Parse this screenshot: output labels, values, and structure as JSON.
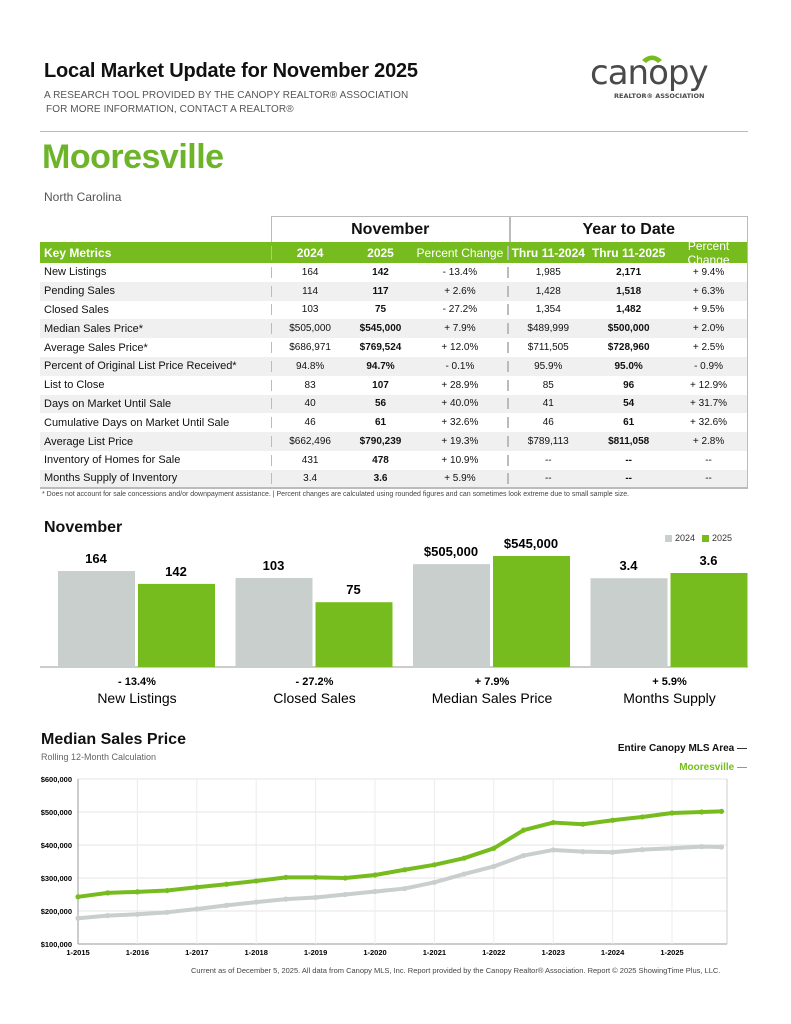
{
  "header": {
    "title": "Local Market Update for November 2025",
    "subtitle1": "A RESEARCH TOOL PROVIDED BY THE CANOPY REALTOR® ASSOCIATION",
    "subtitle2": "FOR MORE INFORMATION, CONTACT A REALTOR®",
    "logo_text": "canopy",
    "logo_sub": "REALTOR® ASSOCIATION"
  },
  "location": {
    "city": "Mooresville",
    "state": "North Carolina"
  },
  "table": {
    "group_headers": [
      "November",
      "Year to Date"
    ],
    "columns": [
      "Key Metrics",
      "2024",
      "2025",
      "Percent Change",
      "Thru 11-2024",
      "Thru 11-2025",
      "Percent Change"
    ],
    "rows": [
      [
        "New Listings",
        "164",
        "142",
        "- 13.4%",
        "1,985",
        "2,171",
        "+ 9.4%"
      ],
      [
        "Pending Sales",
        "114",
        "117",
        "+ 2.6%",
        "1,428",
        "1,518",
        "+ 6.3%"
      ],
      [
        "Closed Sales",
        "103",
        "75",
        "- 27.2%",
        "1,354",
        "1,482",
        "+ 9.5%"
      ],
      [
        "Median Sales Price*",
        "$505,000",
        "$545,000",
        "+ 7.9%",
        "$489,999",
        "$500,000",
        "+ 2.0%"
      ],
      [
        "Average Sales Price*",
        "$686,971",
        "$769,524",
        "+ 12.0%",
        "$711,505",
        "$728,960",
        "+ 2.5%"
      ],
      [
        "Percent of Original List Price Received*",
        "94.8%",
        "94.7%",
        "- 0.1%",
        "95.9%",
        "95.0%",
        "- 0.9%"
      ],
      [
        "List to Close",
        "83",
        "107",
        "+ 28.9%",
        "85",
        "96",
        "+ 12.9%"
      ],
      [
        "Days on Market Until Sale",
        "40",
        "56",
        "+ 40.0%",
        "41",
        "54",
        "+ 31.7%"
      ],
      [
        "Cumulative Days on Market Until Sale",
        "46",
        "61",
        "+ 32.6%",
        "46",
        "61",
        "+ 32.6%"
      ],
      [
        "Average List Price",
        "$662,496",
        "$790,239",
        "+ 19.3%",
        "$789,113",
        "$811,058",
        "+ 2.8%"
      ],
      [
        "Inventory of Homes for Sale",
        "431",
        "478",
        "+ 10.9%",
        "--",
        "--",
        "--"
      ],
      [
        "Months Supply of Inventory",
        "3.4",
        "3.6",
        "+ 5.9%",
        "--",
        "--",
        "--"
      ]
    ],
    "footnote": "* Does not account for sale concessions and/or downpayment assistance.  |  Percent changes are calculated using rounded figures and can sometimes look extreme due to small sample size."
  },
  "chart_data": [
    {
      "type": "bar",
      "title": "November",
      "legend": [
        "2024",
        "2025"
      ],
      "legend_position": "top-right",
      "colors": {
        "2024": "#c8cfcd",
        "2025": "#77bc1f"
      },
      "categories": [
        "New Listings",
        "Closed Sales",
        "Median Sales Price",
        "Months Supply"
      ],
      "series": [
        {
          "name": "2024",
          "values": [
            164,
            103,
            505000,
            3.4
          ],
          "labels": [
            "164",
            "103",
            "$505,000",
            "3.4"
          ]
        },
        {
          "name": "2025",
          "values": [
            142,
            75,
            545000,
            3.6
          ],
          "labels": [
            "142",
            "75",
            "$545,000",
            "3.6"
          ]
        }
      ],
      "changes": [
        "- 13.4%",
        "- 27.2%",
        "+ 7.9%",
        "+ 5.9%"
      ]
    },
    {
      "type": "line",
      "title": "Median Sales Price",
      "subtitle": "Rolling 12-Month Calculation",
      "grid": true,
      "legend_position": "top-right",
      "yticks": [
        "$100,000",
        "$200,000",
        "$300,000",
        "$400,000",
        "$500,000",
        "$600,000"
      ],
      "ylim": [
        100000,
        600000
      ],
      "xticks": [
        "1-2015",
        "1-2016",
        "1-2017",
        "1-2018",
        "1-2019",
        "1-2020",
        "1-2021",
        "1-2022",
        "1-2023",
        "1-2024",
        "1-2025"
      ],
      "x": [
        "2015-01",
        "2015-07",
        "2016-01",
        "2016-07",
        "2017-01",
        "2017-07",
        "2018-01",
        "2018-07",
        "2019-01",
        "2019-07",
        "2020-01",
        "2020-07",
        "2021-01",
        "2021-07",
        "2022-01",
        "2022-07",
        "2023-01",
        "2023-07",
        "2024-01",
        "2024-07",
        "2025-01",
        "2025-07",
        "2025-11"
      ],
      "series": [
        {
          "name": "Entire Canopy MLS Area",
          "color": "#c8cfcd",
          "values": [
            178000,
            186000,
            190000,
            196000,
            206000,
            217000,
            227000,
            236000,
            241000,
            250000,
            259000,
            268000,
            287000,
            312000,
            335000,
            368000,
            385000,
            380000,
            378000,
            386000,
            390000,
            395000,
            394000
          ]
        },
        {
          "name": "Mooresville",
          "color": "#77bc1f",
          "values": [
            243000,
            255000,
            258000,
            262000,
            272000,
            281000,
            291000,
            302000,
            302000,
            300000,
            309000,
            325000,
            340000,
            360000,
            390000,
            445000,
            468000,
            463000,
            475000,
            485000,
            497000,
            500000,
            502000
          ]
        }
      ]
    }
  ],
  "footer": "Current as of December 5, 2025. All data from Canopy MLS, Inc. Report provided by the Canopy Realtor® Association. Report © 2025 ShowingTime Plus, LLC."
}
